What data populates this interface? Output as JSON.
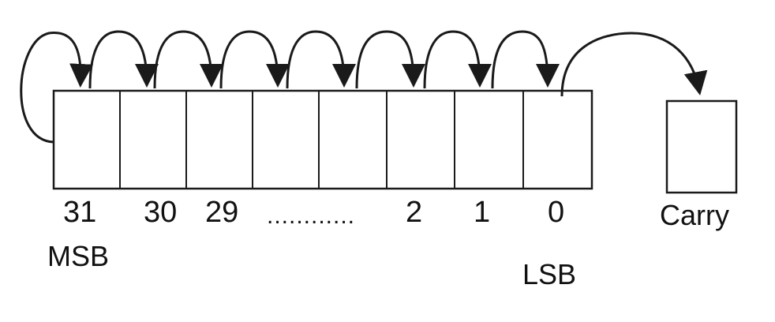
{
  "diagram": {
    "bit_labels": {
      "b31": "31",
      "b30": "30",
      "b29": "29",
      "ellipsis": "............",
      "b2": "2",
      "b1": "1",
      "b0": "0"
    },
    "msb_label": "MSB",
    "lsb_label": "LSB",
    "carry_label": "Carry",
    "cell_count": 8,
    "colors": {
      "stroke": "#1a1a1a",
      "text": "#111111",
      "background": "#ffffff"
    }
  }
}
